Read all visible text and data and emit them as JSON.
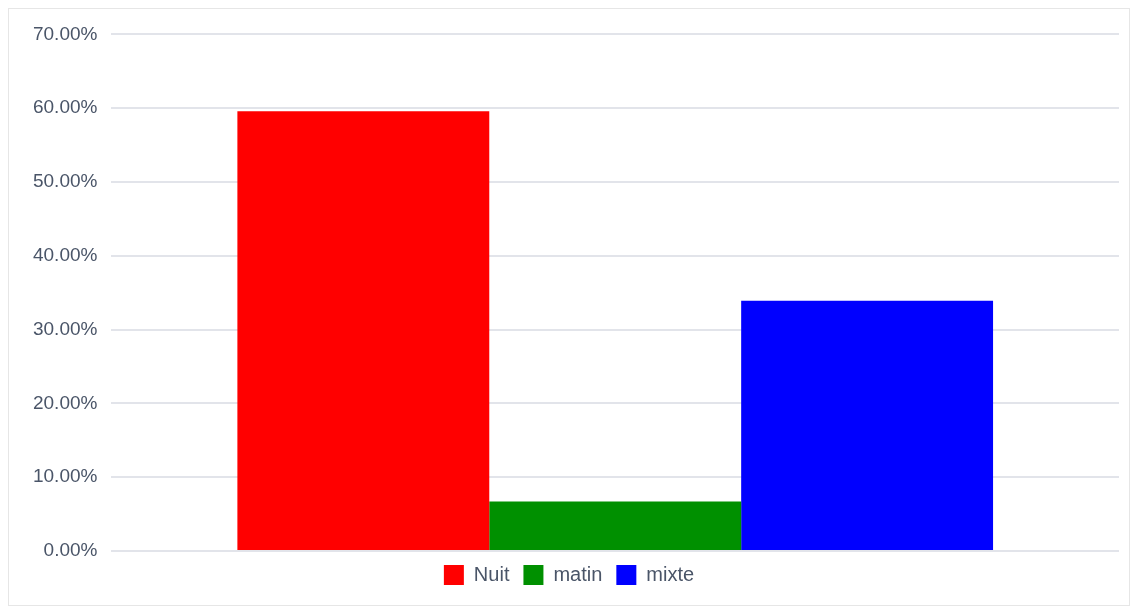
{
  "chart_data": {
    "type": "bar",
    "categories": [
      null
    ],
    "series": [
      {
        "name": "Nuit",
        "color": "#ff0000",
        "values": [
          59.6
        ]
      },
      {
        "name": "matin",
        "color": "#009000",
        "values": [
          6.7
        ]
      },
      {
        "name": "mixte",
        "color": "#0000ff",
        "values": [
          33.9
        ]
      }
    ],
    "ylim": [
      0,
      70
    ],
    "yticks": [
      {
        "value": 0,
        "label": "0.00%"
      },
      {
        "value": 10,
        "label": "10.00%"
      },
      {
        "value": 20,
        "label": "20.00%"
      },
      {
        "value": 30,
        "label": "30.00%"
      },
      {
        "value": 40,
        "label": "40.00%"
      },
      {
        "value": 50,
        "label": "50.00%"
      },
      {
        "value": 60,
        "label": "60.00%"
      },
      {
        "value": 70,
        "label": "70.00%"
      }
    ],
    "grid": "y",
    "legend": "bottom",
    "tick_labels": "y"
  }
}
